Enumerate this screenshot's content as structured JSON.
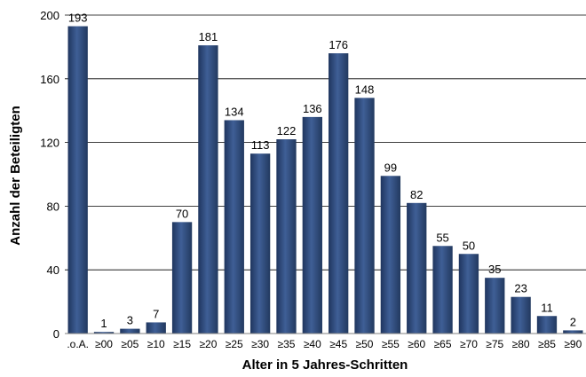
{
  "chart_data": {
    "type": "bar",
    "categories": [
      ".o.A.",
      "≥00",
      "≥05",
      "≥10",
      "≥15",
      "≥20",
      "≥25",
      "≥30",
      "≥35",
      "≥40",
      "≥45",
      "≥50",
      "≥55",
      "≥60",
      "≥65",
      "≥70",
      "≥75",
      "≥80",
      "≥85",
      "≥90"
    ],
    "values": [
      193,
      1,
      3,
      7,
      70,
      181,
      134,
      113,
      122,
      136,
      176,
      148,
      99,
      82,
      55,
      50,
      35,
      23,
      11,
      2
    ],
    "xlabel": "Alter in 5 Jahres-Schritten",
    "ylabel": "Anzahl der Beteiligten",
    "ylim": [
      0,
      200
    ],
    "yticks": [
      0,
      40,
      80,
      120,
      160,
      200
    ],
    "grid": true,
    "bar_color": "#2E4A7D"
  }
}
